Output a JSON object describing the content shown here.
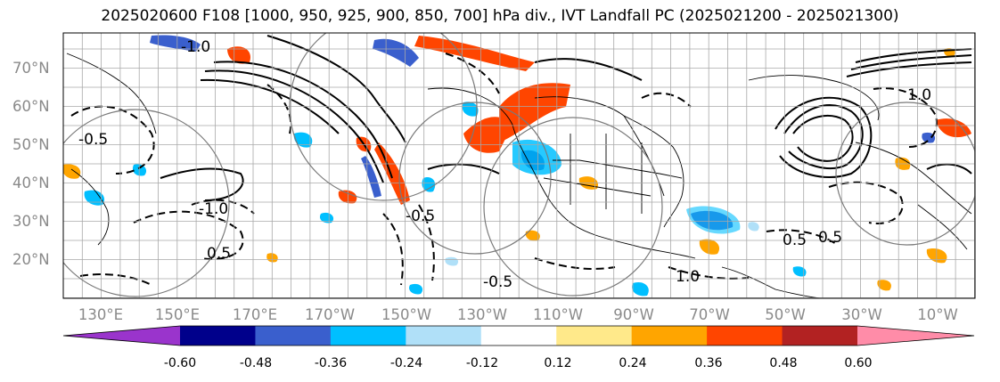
{
  "title": "2025020600 F108 [1000, 950, 925, 900, 850, 700] hPa div., IVT Landfall PC (2025021200 - 2025021300)",
  "map": {
    "lat_labels": [
      "70°N",
      "60°N",
      "50°N",
      "40°N",
      "30°N",
      "20°N"
    ],
    "lon_labels": [
      "130°E",
      "150°E",
      "170°E",
      "170°W",
      "150°W",
      "130°W",
      "110°W",
      "90°W",
      "70°W",
      "50°W",
      "30°W",
      "10°W"
    ],
    "contour_labels": [
      "1.0",
      "-1.0",
      "-0.5",
      "0.5",
      "-1.0",
      "-0.5",
      "0.5",
      "0.5",
      "1.0",
      "-0.5"
    ]
  },
  "colorbar": {
    "colors": [
      "#9a34cc",
      "#00008b",
      "#3a5fcd",
      "#00bfff",
      "#b0e0f8",
      "#ffffff",
      "#ffe98a",
      "#ffa500",
      "#ff4500",
      "#b22222",
      "#ff8ca8"
    ],
    "ticks": [
      "-0.60",
      "-0.48",
      "-0.36",
      "-0.24",
      "-0.12",
      "0.12",
      "0.24",
      "0.36",
      "0.48",
      "0.60"
    ]
  },
  "colors": {
    "grid": "#9a9a9a",
    "contour": "#000000",
    "coast": "#000000"
  }
}
